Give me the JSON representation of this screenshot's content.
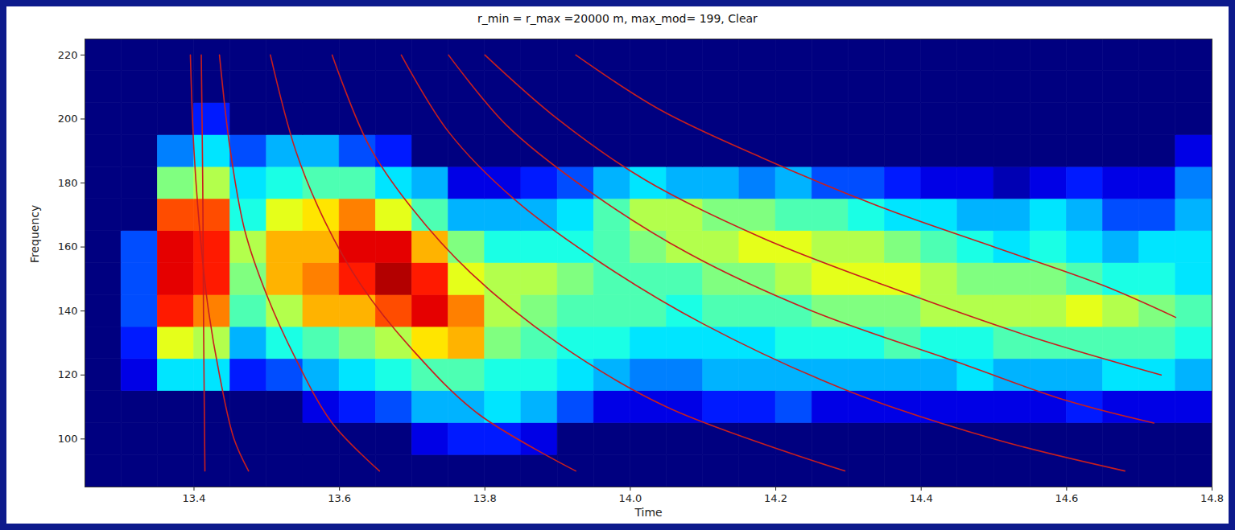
{
  "chart_data": {
    "type": "heatmap",
    "title": "r_min = r_max =20000 m, max_mod= 199, Clear",
    "x_label": "Time",
    "y_label": "Frequency",
    "xlim": [
      13.25,
      14.8
    ],
    "ylim": [
      85,
      225
    ],
    "xticks": [
      13.4,
      13.6,
      13.8,
      {
        "value": 14,
        "label": "14.0"
      },
      14.2,
      14.4,
      14.6,
      14.8
    ],
    "yticks": [
      100,
      120,
      140,
      160,
      180,
      200,
      220
    ],
    "zlim": [
      0,
      1
    ],
    "cells": {
      "x": [
        13.25,
        13.3,
        13.35,
        13.4,
        13.45,
        13.5,
        13.55,
        13.6,
        13.65,
        13.7,
        13.75,
        13.8,
        13.85,
        13.9,
        13.95,
        14.0,
        14.05,
        14.1,
        14.15,
        14.2,
        14.25,
        14.3,
        14.35,
        14.4,
        14.45,
        14.5,
        14.55,
        14.6,
        14.65,
        14.7,
        14.75,
        14.8
      ],
      "y": [
        85,
        95,
        105,
        115,
        125,
        135,
        145,
        155,
        165,
        175,
        185,
        195,
        205,
        215,
        225
      ],
      "values": [
        [
          0,
          0,
          0,
          0,
          0,
          0,
          0,
          0,
          0,
          0,
          0,
          0,
          0,
          0,
          0,
          0,
          0,
          0,
          0,
          0,
          0,
          0,
          0,
          0,
          0,
          0,
          0,
          0,
          0,
          0,
          0
        ],
        [
          0,
          0,
          0,
          0,
          0,
          0,
          0,
          0,
          0,
          0.1,
          0.15,
          0.15,
          0.1,
          0,
          0,
          0,
          0,
          0,
          0,
          0,
          0,
          0,
          0,
          0,
          0,
          0,
          0,
          0,
          0,
          0,
          0
        ],
        [
          0,
          0,
          0,
          0,
          0,
          0,
          0.1,
          0.15,
          0.2,
          0.3,
          0.3,
          0.35,
          0.3,
          0.2,
          0.1,
          0.1,
          0.1,
          0.15,
          0.15,
          0.2,
          0.1,
          0.1,
          0.1,
          0.1,
          0.1,
          0.1,
          0.1,
          0.15,
          0.1,
          0.1,
          0.1
        ],
        [
          0,
          0.1,
          0.35,
          0.35,
          0.15,
          0.2,
          0.3,
          0.35,
          0.4,
          0.45,
          0.45,
          0.4,
          0.4,
          0.35,
          0.3,
          0.25,
          0.25,
          0.3,
          0.3,
          0.3,
          0.3,
          0.3,
          0.3,
          0.3,
          0.35,
          0.3,
          0.3,
          0.3,
          0.35,
          0.35,
          0.3
        ],
        [
          0,
          0.15,
          0.6,
          0.55,
          0.3,
          0.4,
          0.45,
          0.5,
          0.55,
          0.65,
          0.7,
          0.5,
          0.45,
          0.4,
          0.4,
          0.35,
          0.35,
          0.35,
          0.35,
          0.4,
          0.4,
          0.4,
          0.45,
          0.4,
          0.4,
          0.45,
          0.45,
          0.45,
          0.45,
          0.45,
          0.4
        ],
        [
          0,
          0.2,
          0.85,
          0.75,
          0.45,
          0.55,
          0.7,
          0.7,
          0.8,
          0.9,
          0.75,
          0.55,
          0.5,
          0.45,
          0.45,
          0.45,
          0.4,
          0.45,
          0.45,
          0.45,
          0.5,
          0.5,
          0.5,
          0.55,
          0.55,
          0.55,
          0.55,
          0.6,
          0.55,
          0.5,
          0.45
        ],
        [
          0,
          0.2,
          0.9,
          0.85,
          0.5,
          0.7,
          0.75,
          0.85,
          0.95,
          0.85,
          0.6,
          0.55,
          0.55,
          0.5,
          0.45,
          0.45,
          0.45,
          0.5,
          0.5,
          0.55,
          0.6,
          0.6,
          0.6,
          0.55,
          0.5,
          0.5,
          0.5,
          0.45,
          0.4,
          0.4,
          0.35
        ],
        [
          0,
          0.2,
          0.9,
          0.85,
          0.55,
          0.7,
          0.7,
          0.9,
          0.9,
          0.7,
          0.5,
          0.4,
          0.4,
          0.4,
          0.45,
          0.5,
          0.55,
          0.55,
          0.6,
          0.6,
          0.55,
          0.55,
          0.5,
          0.45,
          0.4,
          0.35,
          0.4,
          0.35,
          0.3,
          0.35,
          0.35
        ],
        [
          0,
          0,
          0.8,
          0.8,
          0.4,
          0.6,
          0.65,
          0.75,
          0.6,
          0.45,
          0.3,
          0.3,
          0.3,
          0.35,
          0.45,
          0.55,
          0.55,
          0.5,
          0.5,
          0.45,
          0.45,
          0.4,
          0.35,
          0.35,
          0.3,
          0.3,
          0.35,
          0.3,
          0.2,
          0.2,
          0.3
        ],
        [
          0,
          0,
          0.5,
          0.55,
          0.35,
          0.4,
          0.45,
          0.45,
          0.35,
          0.3,
          0.1,
          0.1,
          0.15,
          0.2,
          0.3,
          0.35,
          0.3,
          0.3,
          0.25,
          0.3,
          0.2,
          0.2,
          0.15,
          0.1,
          0.1,
          0.05,
          0.1,
          0.15,
          0.1,
          0.1,
          0.25
        ],
        [
          0,
          0,
          0.25,
          0.35,
          0.2,
          0.3,
          0.3,
          0.2,
          0.15,
          0,
          0,
          0,
          0,
          0,
          0,
          0,
          0,
          0,
          0,
          0,
          0,
          0,
          0,
          0,
          0,
          0,
          0,
          0,
          0,
          0,
          0.1
        ],
        [
          0,
          0,
          0,
          0.15,
          0,
          0,
          0,
          0,
          0,
          0,
          0,
          0,
          0,
          0,
          0,
          0,
          0,
          0,
          0,
          0,
          0,
          0,
          0,
          0,
          0,
          0,
          0,
          0,
          0,
          0,
          0
        ],
        [
          0,
          0,
          0,
          0,
          0,
          0,
          0,
          0,
          0,
          0,
          0,
          0,
          0,
          0,
          0,
          0,
          0,
          0,
          0,
          0,
          0,
          0,
          0,
          0,
          0,
          0,
          0,
          0,
          0,
          0,
          0
        ],
        [
          0,
          0,
          0,
          0,
          0,
          0,
          0,
          0,
          0,
          0,
          0,
          0,
          0,
          0,
          0,
          0,
          0,
          0,
          0,
          0,
          0,
          0,
          0,
          0,
          0,
          0,
          0,
          0,
          0,
          0,
          0
        ]
      ]
    },
    "color": "#c81e1e",
    "curves": [
      {
        "x": [
          13.41,
          13.412,
          13.413,
          13.415
        ],
        "y": [
          220,
          180,
          140,
          90
        ]
      },
      {
        "x": [
          13.395,
          13.4,
          13.41,
          13.42,
          13.435,
          13.455,
          13.475
        ],
        "y": [
          220,
          190,
          160,
          140,
          120,
          100,
          90
        ]
      },
      {
        "x": [
          13.435,
          13.45,
          13.47,
          13.5,
          13.54,
          13.59,
          13.655
        ],
        "y": [
          220,
          190,
          165,
          145,
          125,
          105,
          90
        ]
      },
      {
        "x": [
          13.505,
          13.54,
          13.58,
          13.63,
          13.7,
          13.79,
          13.925
        ],
        "y": [
          220,
          190,
          168,
          148,
          128,
          108,
          90
        ]
      },
      {
        "x": [
          13.59,
          13.64,
          13.7,
          13.78,
          13.9,
          14.05,
          14.295
        ],
        "y": [
          220,
          192,
          172,
          152,
          130,
          110,
          90
        ]
      },
      {
        "x": [
          13.685,
          13.75,
          13.84,
          13.96,
          14.1,
          14.3,
          14.5,
          14.68
        ],
        "y": [
          220,
          196,
          175,
          155,
          136,
          115,
          100,
          90
        ]
      },
      {
        "x": [
          13.75,
          13.83,
          13.94,
          14.08,
          14.25,
          14.45,
          14.6,
          14.72
        ],
        "y": [
          220,
          198,
          178,
          158,
          140,
          124,
          112,
          105
        ]
      },
      {
        "x": [
          13.8,
          13.9,
          14.02,
          14.18,
          14.35,
          14.55,
          14.73
        ],
        "y": [
          220,
          200,
          181,
          163,
          148,
          132,
          120
        ]
      },
      {
        "x": [
          13.925,
          14.04,
          14.18,
          14.35,
          14.5,
          14.65,
          14.75
        ],
        "y": [
          220,
          203,
          188,
          172,
          160,
          148,
          138
        ]
      }
    ]
  }
}
